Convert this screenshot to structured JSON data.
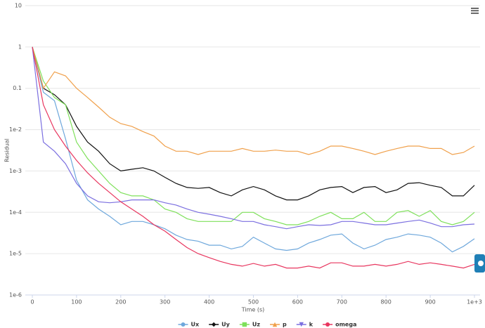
{
  "chart_data": {
    "type": "line",
    "y_title": "Residual",
    "x_title": "Time (s)",
    "yscale": "log",
    "grid": true,
    "legend": "bottom",
    "xlim": [
      0,
      1000
    ],
    "xticks": [
      0,
      100,
      200,
      300,
      400,
      500,
      600,
      700,
      800,
      900,
      {
        "value": 1000,
        "label": "1e+3"
      }
    ],
    "ylim": [
      1e-06,
      10
    ],
    "yticks": [
      10,
      1,
      0.1,
      {
        "value": 0.01,
        "label": "1e-2"
      },
      {
        "value": 0.001,
        "label": "1e-3"
      },
      {
        "value": 0.0001,
        "label": "1e-4"
      },
      {
        "value": 1e-05,
        "label": "1e-5"
      },
      {
        "value": 1e-06,
        "label": "1e-6"
      }
    ],
    "x": [
      0,
      25,
      50,
      75,
      100,
      125,
      150,
      175,
      200,
      225,
      250,
      275,
      300,
      325,
      350,
      375,
      400,
      425,
      450,
      475,
      500,
      525,
      550,
      575,
      600,
      625,
      650,
      675,
      700,
      725,
      750,
      775,
      800,
      825,
      850,
      875,
      900,
      925,
      950,
      975,
      1000
    ],
    "series": [
      {
        "name": "Ux",
        "color": "#6fa8dc",
        "symbol": "circle",
        "values": [
          1,
          0.08,
          0.05,
          0.006,
          0.0006,
          0.0002,
          0.00012,
          8e-05,
          5e-05,
          6e-05,
          6e-05,
          5e-05,
          4e-05,
          2.8e-05,
          2.2e-05,
          2e-05,
          1.6e-05,
          1.6e-05,
          1.3e-05,
          1.5e-05,
          2.5e-05,
          1.8e-05,
          1.3e-05,
          1.2e-05,
          1.3e-05,
          1.8e-05,
          2.2e-05,
          2.8e-05,
          3e-05,
          1.8e-05,
          1.3e-05,
          1.6e-05,
          2.2e-05,
          2.5e-05,
          3e-05,
          2.8e-05,
          2.5e-05,
          1.8e-05,
          1.1e-05,
          1.5e-05,
          2.3e-05
        ]
      },
      {
        "name": "Uy",
        "color": "#111111",
        "symbol": "diamond",
        "values": [
          1,
          0.1,
          0.07,
          0.04,
          0.012,
          0.005,
          0.003,
          0.0015,
          0.001,
          0.0011,
          0.0012,
          0.001,
          0.0007,
          0.0005,
          0.0004,
          0.00038,
          0.0004,
          0.0003,
          0.00025,
          0.00035,
          0.00042,
          0.00035,
          0.00025,
          0.0002,
          0.0002,
          0.00025,
          0.00035,
          0.0004,
          0.00042,
          0.0003,
          0.0004,
          0.00042,
          0.0003,
          0.00035,
          0.0005,
          0.00052,
          0.00045,
          0.0004,
          0.00025,
          0.00025,
          0.00045
        ]
      },
      {
        "name": "Uz",
        "color": "#7ee05a",
        "symbol": "square",
        "values": [
          1,
          0.15,
          0.06,
          0.04,
          0.005,
          0.002,
          0.001,
          0.0005,
          0.0003,
          0.00025,
          0.00025,
          0.0002,
          0.00012,
          0.0001,
          7e-05,
          6e-05,
          6e-05,
          6e-05,
          6e-05,
          0.0001,
          0.0001,
          7e-05,
          6e-05,
          5e-05,
          5e-05,
          6e-05,
          8e-05,
          0.0001,
          7e-05,
          7e-05,
          0.0001,
          6e-05,
          6e-05,
          0.0001,
          0.00011,
          8e-05,
          0.00011,
          6e-05,
          5e-05,
          6e-05,
          0.0001
        ]
      },
      {
        "name": "p",
        "color": "#f0a04b",
        "symbol": "triangle",
        "values": [
          1,
          0.1,
          0.25,
          0.2,
          0.1,
          0.06,
          0.035,
          0.02,
          0.014,
          0.012,
          0.009,
          0.007,
          0.004,
          0.003,
          0.003,
          0.0025,
          0.003,
          0.003,
          0.003,
          0.0035,
          0.003,
          0.003,
          0.0032,
          0.003,
          0.003,
          0.0025,
          0.003,
          0.004,
          0.004,
          0.0035,
          0.003,
          0.0025,
          0.003,
          0.0035,
          0.004,
          0.004,
          0.0035,
          0.0035,
          0.0025,
          0.0028,
          0.004
        ]
      },
      {
        "name": "k",
        "color": "#7b6fe0",
        "symbol": "triangle-down",
        "values": [
          1,
          0.005,
          0.003,
          0.0015,
          0.0005,
          0.00025,
          0.00018,
          0.00017,
          0.00018,
          0.0002,
          0.0002,
          0.0002,
          0.00017,
          0.00015,
          0.00012,
          0.0001,
          9e-05,
          8e-05,
          7e-05,
          6e-05,
          6e-05,
          5e-05,
          4.5e-05,
          4e-05,
          4.5e-05,
          5e-05,
          4.8e-05,
          5e-05,
          6e-05,
          6e-05,
          5.5e-05,
          5e-05,
          5e-05,
          5.5e-05,
          6e-05,
          6.5e-05,
          5.5e-05,
          4.5e-05,
          4.5e-05,
          5e-05,
          5.2e-05
        ]
      },
      {
        "name": "omega",
        "color": "#e8365f",
        "symbol": "circle",
        "values": [
          1,
          0.04,
          0.01,
          0.004,
          0.0018,
          0.0009,
          0.0005,
          0.0003,
          0.00018,
          0.00012,
          8e-05,
          5e-05,
          3.5e-05,
          2.2e-05,
          1.4e-05,
          1e-05,
          8e-06,
          6.5e-06,
          5.5e-06,
          5e-06,
          5.8e-06,
          5e-06,
          5.5e-06,
          4.5e-06,
          4.5e-06,
          5e-06,
          4.5e-06,
          6e-06,
          6e-06,
          5e-06,
          5e-06,
          5.5e-06,
          5e-06,
          5.5e-06,
          6.5e-06,
          5.5e-06,
          6e-06,
          5.5e-06,
          5e-06,
          4.5e-06,
          5.5e-06
        ]
      }
    ]
  }
}
